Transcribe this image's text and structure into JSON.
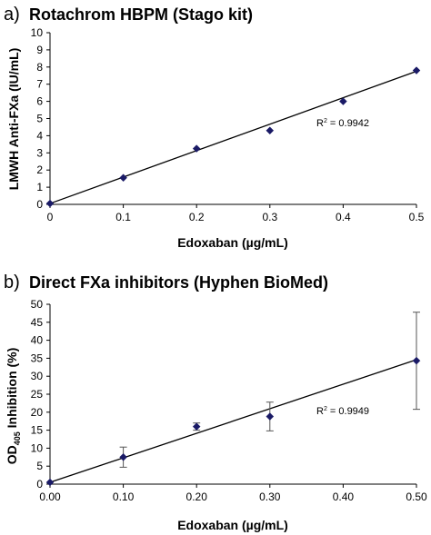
{
  "chart_data": [
    {
      "type": "scatter",
      "panel": "a)",
      "title": "Rotachrom HBPM (Stago kit)",
      "xlabel": "Edoxaban (µg/mL)",
      "ylabel": "LMWH Anti-FXa (IU/mL)",
      "xlim": [
        0,
        0.5
      ],
      "ylim": [
        0,
        10
      ],
      "x_ticks": [
        "0",
        "0.1",
        "0.2",
        "0.3",
        "0.4",
        "0.5"
      ],
      "y_ticks": [
        "0",
        "1",
        "2",
        "3",
        "4",
        "5",
        "6",
        "7",
        "8",
        "9",
        "10"
      ],
      "points": [
        {
          "x": 0,
          "y": 0.05
        },
        {
          "x": 0.1,
          "y": 1.55
        },
        {
          "x": 0.2,
          "y": 3.25
        },
        {
          "x": 0.3,
          "y": 4.3
        },
        {
          "x": 0.4,
          "y": 6.0
        },
        {
          "x": 0.5,
          "y": 7.8
        }
      ],
      "trendline": {
        "type": "linear",
        "from": [
          0,
          0.05
        ],
        "to": [
          0.5,
          7.75
        ]
      },
      "r_squared_prefix": "R",
      "r_squared_exp": "2",
      "r_squared_value": " = 0.9942",
      "marker_color": "#1a1a66",
      "grid": false
    },
    {
      "type": "scatter",
      "panel": "b)",
      "title": "Direct FXa inhibitors (Hyphen BioMed)",
      "xlabel": "Edoxaban (µg/mL)",
      "ylabel_prefix": "OD",
      "ylabel_sub": "405",
      "ylabel_suffix": " Inhibition (%)",
      "xlim": [
        0,
        0.5
      ],
      "ylim": [
        0,
        50
      ],
      "x_ticks": [
        "0.00",
        "0.10",
        "0.20",
        "0.30",
        "0.40",
        "0.50"
      ],
      "y_ticks": [
        "0",
        "5",
        "10",
        "15",
        "20",
        "25",
        "30",
        "35",
        "40",
        "45",
        "50"
      ],
      "points": [
        {
          "x": 0,
          "y": 0.5,
          "err": 0
        },
        {
          "x": 0.1,
          "y": 7.5,
          "err": 2.8
        },
        {
          "x": 0.2,
          "y": 16,
          "err": 1.0
        },
        {
          "x": 0.3,
          "y": 18.8,
          "err": 4.0
        },
        {
          "x": 0.5,
          "y": 34.3,
          "err": 13.5
        }
      ],
      "trendline": {
        "type": "linear",
        "from": [
          0,
          0.5
        ],
        "to": [
          0.5,
          34.6
        ]
      },
      "r_squared_prefix": "R",
      "r_squared_exp": "2",
      "r_squared_value": " = 0.9949",
      "marker_color": "#1a1a66",
      "grid": false
    }
  ]
}
